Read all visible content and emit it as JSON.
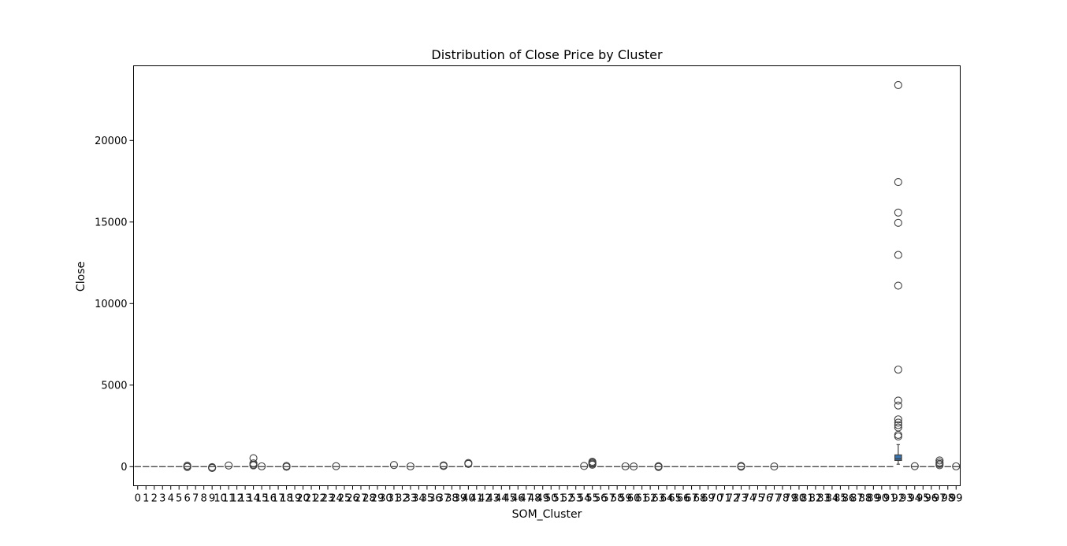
{
  "chart_data": {
    "type": "box",
    "title": "Distribution of Close Price by Cluster",
    "xlabel": "SOM_Cluster",
    "ylabel": "Close",
    "categories": [
      "0",
      "1",
      "2",
      "3",
      "4",
      "5",
      "6",
      "7",
      "8",
      "9",
      "10",
      "11",
      "12",
      "13",
      "14",
      "15",
      "16",
      "17",
      "18",
      "19",
      "20",
      "21",
      "22",
      "23",
      "24",
      "25",
      "26",
      "27",
      "28",
      "29",
      "30",
      "31",
      "32",
      "33",
      "34",
      "35",
      "36",
      "37",
      "38",
      "39",
      "40",
      "41",
      "42",
      "43",
      "44",
      "45",
      "46",
      "47",
      "48",
      "49",
      "50",
      "51",
      "52",
      "53",
      "54",
      "55",
      "56",
      "57",
      "58",
      "59",
      "60",
      "61",
      "62",
      "63",
      "64",
      "65",
      "66",
      "67",
      "68",
      "69",
      "70",
      "71",
      "72",
      "73",
      "74",
      "75",
      "76",
      "77",
      "78",
      "79",
      "80",
      "81",
      "82",
      "83",
      "84",
      "85",
      "86",
      "87",
      "88",
      "89",
      "90",
      "91",
      "92",
      "93",
      "94",
      "95",
      "96",
      "97",
      "98",
      "99"
    ],
    "ylim": [
      -1170,
      24580
    ],
    "yticks": [
      0,
      5000,
      10000,
      15000,
      20000
    ],
    "grid": false,
    "box_color": "#3a75af",
    "boxes": [
      {
        "cluster": "92",
        "q1": 380,
        "median": 480,
        "q3": 720,
        "whisker_low": 150,
        "whisker_high": 1350,
        "outliers": [
          23400,
          17450,
          15580,
          14950,
          12980,
          11100,
          5950,
          4050,
          3750,
          2900,
          2700,
          2550,
          2400,
          1950,
          1850
        ]
      }
    ],
    "small_cluster_outliers": [
      {
        "cluster": "6",
        "values": [
          60,
          0,
          -20
        ]
      },
      {
        "cluster": "9",
        "values": [
          -30,
          -60,
          -80
        ]
      },
      {
        "cluster": "11",
        "values": [
          70
        ]
      },
      {
        "cluster": "14",
        "values": [
          520,
          200,
          120,
          80
        ]
      },
      {
        "cluster": "15",
        "values": [
          20
        ]
      },
      {
        "cluster": "18",
        "values": [
          40,
          -10
        ]
      },
      {
        "cluster": "24",
        "values": [
          30
        ]
      },
      {
        "cluster": "31",
        "values": [
          100
        ]
      },
      {
        "cluster": "33",
        "values": [
          20
        ]
      },
      {
        "cluster": "37",
        "values": [
          80,
          40
        ]
      },
      {
        "cluster": "40",
        "values": [
          220,
          170
        ]
      },
      {
        "cluster": "54",
        "values": [
          40
        ]
      },
      {
        "cluster": "55",
        "values": [
          300,
          240,
          180,
          120
        ]
      },
      {
        "cluster": "59",
        "values": [
          20
        ]
      },
      {
        "cluster": "60",
        "values": [
          10
        ]
      },
      {
        "cluster": "63",
        "values": [
          30,
          0,
          -20
        ]
      },
      {
        "cluster": "73",
        "values": [
          40,
          0
        ]
      },
      {
        "cluster": "77",
        "values": [
          10
        ]
      },
      {
        "cluster": "94",
        "values": [
          30
        ]
      },
      {
        "cluster": "97",
        "values": [
          380,
          260,
          170,
          90
        ]
      },
      {
        "cluster": "99",
        "values": [
          20
        ]
      }
    ]
  }
}
